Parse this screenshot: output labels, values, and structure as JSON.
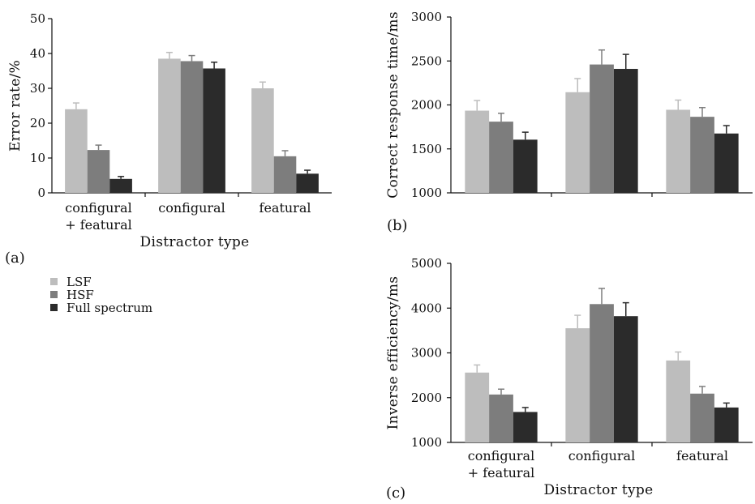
{
  "figure": {
    "legend": [
      {
        "label": "LSF",
        "color": "#bdbdbd"
      },
      {
        "label": "HSF",
        "color": "#7d7d7d"
      },
      {
        "label": "Full spectrum",
        "color": "#2b2b2b"
      }
    ]
  },
  "chart_data": [
    {
      "type": "bar",
      "panel_label": "(a)",
      "ylabel": "Error rate/%",
      "xlabel": "Distractor type",
      "categories": [
        [
          "configural",
          "+ featural"
        ],
        [
          "configural"
        ],
        [
          "featural"
        ]
      ],
      "ylim": [
        0,
        50
      ],
      "yticks": [
        0,
        10,
        20,
        30,
        40,
        50
      ],
      "series": [
        {
          "name": "LSF",
          "values": [
            24,
            38.5,
            30
          ],
          "errors": [
            1.8,
            1.8,
            1.8
          ]
        },
        {
          "name": "HSF",
          "values": [
            12.3,
            37.8,
            10.5
          ],
          "errors": [
            1.4,
            1.6,
            1.6
          ]
        },
        {
          "name": "Full spectrum",
          "values": [
            4,
            35.7,
            5.5
          ],
          "errors": [
            0.7,
            1.8,
            1.0
          ]
        }
      ]
    },
    {
      "type": "bar",
      "panel_label": "(b)",
      "ylabel": "Correct response time/ms",
      "xlabel": "",
      "categories": [
        [
          ""
        ],
        [
          ""
        ],
        [
          ""
        ]
      ],
      "ylim": [
        1000,
        3000
      ],
      "yticks": [
        1000,
        1500,
        2000,
        2500,
        3000
      ],
      "series": [
        {
          "name": "LSF",
          "values": [
            1935,
            2145,
            1945
          ],
          "errors": [
            115,
            155,
            110
          ]
        },
        {
          "name": "HSF",
          "values": [
            1810,
            2460,
            1865
          ],
          "errors": [
            95,
            165,
            105
          ]
        },
        {
          "name": "Full spectrum",
          "values": [
            1605,
            2410,
            1675
          ],
          "errors": [
            85,
            165,
            90
          ]
        }
      ]
    },
    {
      "type": "bar",
      "panel_label": "(c)",
      "ylabel": "Inverse efficiency/ms",
      "xlabel": "Distractor type",
      "categories": [
        [
          "configural",
          "+ featural"
        ],
        [
          "configural"
        ],
        [
          "featural"
        ]
      ],
      "ylim": [
        1000,
        5000
      ],
      "yticks": [
        1000,
        2000,
        3000,
        4000,
        5000
      ],
      "series": [
        {
          "name": "LSF",
          "values": [
            2560,
            3550,
            2830
          ],
          "errors": [
            170,
            290,
            190
          ]
        },
        {
          "name": "HSF",
          "values": [
            2070,
            4090,
            2090
          ],
          "errors": [
            120,
            350,
            160
          ]
        },
        {
          "name": "Full spectrum",
          "values": [
            1680,
            3820,
            1780
          ],
          "errors": [
            100,
            300,
            100
          ]
        }
      ]
    }
  ]
}
